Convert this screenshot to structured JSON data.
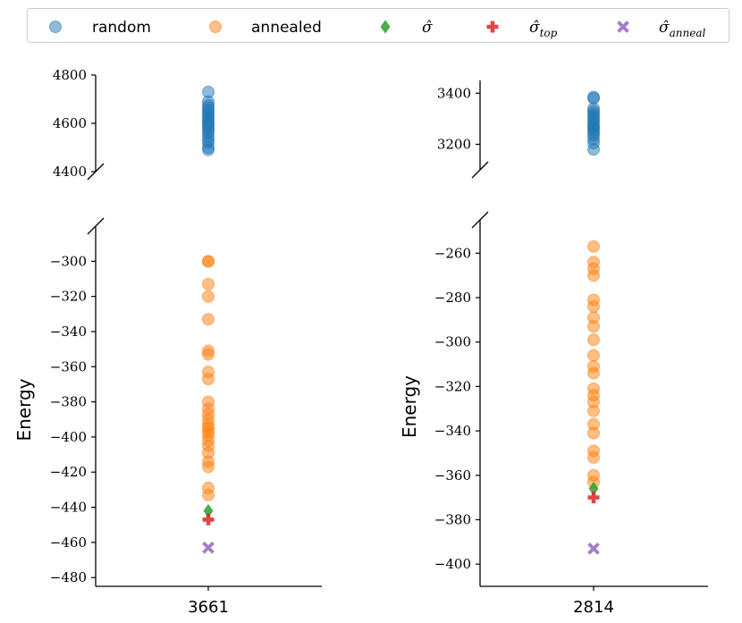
{
  "chart_data": {
    "type": "scatter",
    "ylabel": "Energy",
    "legend": {
      "placement": "top",
      "entries": [
        {
          "key": "random",
          "label": "random",
          "marker": "circle",
          "color": "#1f77b4"
        },
        {
          "key": "annealed",
          "label": "annealed",
          "marker": "circle",
          "color": "#ff7f0e"
        },
        {
          "key": "sigma_hat",
          "label": "σ̂",
          "sub": "",
          "marker": "diamond",
          "color": "#2ca02c"
        },
        {
          "key": "sigma_top",
          "label": "σ̂",
          "sub": "top",
          "marker": "plus",
          "color": "#d62728"
        },
        {
          "key": "sigma_anneal",
          "label": "σ̂",
          "sub": "anneal",
          "marker": "x",
          "color": "#9467bd"
        }
      ]
    },
    "panels": [
      {
        "category": "3661",
        "upper": {
          "ylim": [
            4400,
            4800
          ],
          "ticks": [
            4400,
            4600,
            4800
          ],
          "tick_labels": [
            "4400",
            "4600",
            "4800"
          ],
          "random": [
            4490,
            4500,
            4520,
            4530,
            4545,
            4560,
            4570,
            4580,
            4590,
            4600,
            4605,
            4615,
            4625,
            4635,
            4645,
            4655,
            4665,
            4675,
            4690,
            4730
          ]
        },
        "lower": {
          "ylim": [
            -485,
            -280
          ],
          "ticks": [
            -480,
            -460,
            -440,
            -420,
            -400,
            -380,
            -360,
            -340,
            -320,
            -300
          ],
          "tick_labels": [
            "−480",
            "−460",
            "−440",
            "−420",
            "−400",
            "−380",
            "−360",
            "−340",
            "−320",
            "−300"
          ],
          "annealed": [
            -300,
            -300,
            -313,
            -320,
            -333,
            -351,
            -353,
            -363,
            -367,
            -380,
            -384,
            -387,
            -390,
            -393,
            -395,
            -397,
            -399,
            -402,
            -405,
            -409,
            -414,
            -417,
            -429,
            -433
          ],
          "sigma_hat": -442,
          "sigma_top": -447,
          "sigma_anneal": -463
        }
      },
      {
        "category": "2814",
        "upper": {
          "ylim": [
            3100,
            3450
          ],
          "ticks": [
            3200,
            3400
          ],
          "tick_labels": [
            "3200",
            "3400"
          ],
          "random": [
            3180,
            3205,
            3220,
            3235,
            3245,
            3255,
            3265,
            3270,
            3280,
            3290,
            3300,
            3310,
            3320,
            3330,
            3340,
            3380,
            3385
          ]
        },
        "lower": {
          "ylim": [
            -410,
            -245
          ],
          "ticks": [
            -400,
            -380,
            -360,
            -340,
            -320,
            -300,
            -280,
            -260
          ],
          "tick_labels": [
            "−400",
            "−380",
            "−360",
            "−340",
            "−320",
            "−300",
            "−280",
            "−260"
          ],
          "annealed": [
            -257,
            -264,
            -267,
            -270,
            -281,
            -284,
            -289,
            -293,
            -299,
            -306,
            -311,
            -314,
            -321,
            -324,
            -327,
            -331,
            -337,
            -341,
            -349,
            -352,
            -360,
            -363
          ],
          "sigma_hat": -366,
          "sigma_top": -370,
          "sigma_anneal": -393
        }
      }
    ]
  }
}
